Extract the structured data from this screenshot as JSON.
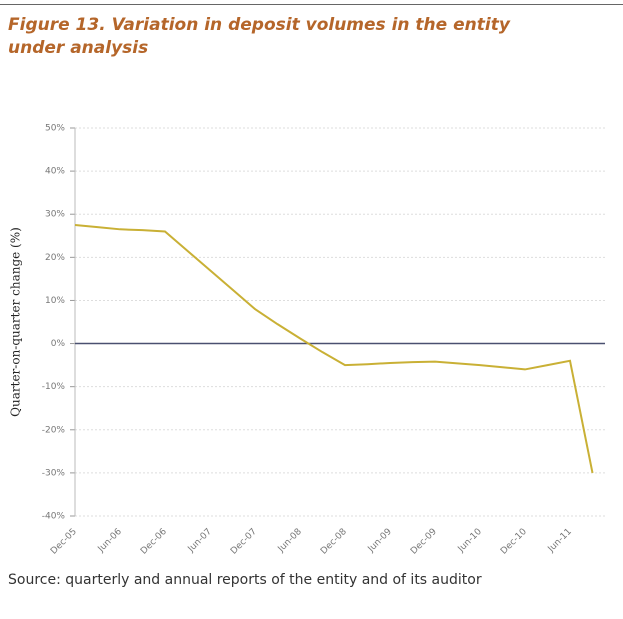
{
  "chart_data": {
    "type": "line",
    "title": "Figure 13. Variation in deposit volumes in the entity under analysis",
    "y_label": "Quarter-on-quarter change (%)",
    "source": "Source: quarterly and annual reports of the entity and of its auditor",
    "categories": [
      "Dec-05",
      null,
      "Jun-06",
      null,
      "Dec-06",
      null,
      "Jun-07",
      null,
      "Dec-07",
      null,
      "Jun-08",
      null,
      "Dec-08",
      null,
      "Jun-09",
      null,
      "Dec-09",
      null,
      "Jun-10",
      null,
      "Dec-10",
      null,
      "Jun-11",
      null
    ],
    "values": [
      27.5,
      27,
      26.5,
      26.3,
      26,
      21.5,
      17,
      12.5,
      8,
      4.5,
      1.2,
      -2,
      -5,
      -4.8,
      -4.5,
      -4.3,
      -4.2,
      -4.6,
      -5,
      -5.5,
      -6,
      -5,
      -4,
      -30
    ],
    "color": "#c9b035",
    "ylim": [
      -40,
      50
    ],
    "yticks": [
      {
        "value": 50,
        "label": "50%"
      },
      {
        "value": 40,
        "label": "40%"
      },
      {
        "value": 30,
        "label": "30%"
      },
      {
        "value": 20,
        "label": "20%"
      },
      {
        "value": 10,
        "label": "10%"
      },
      {
        "value": 0,
        "label": "0%"
      },
      {
        "value": -10,
        "label": "-10%"
      },
      {
        "value": -20,
        "label": "-20%"
      },
      {
        "value": -30,
        "label": "-30%"
      },
      {
        "value": -40,
        "label": "-40%"
      }
    ],
    "grid": true
  }
}
